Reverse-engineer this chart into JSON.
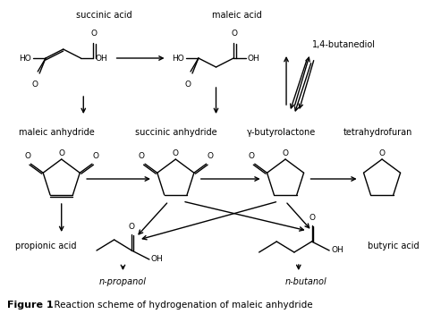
{
  "background_color": "#ffffff",
  "figure_width": 4.74,
  "figure_height": 3.51,
  "dpi": 100,
  "labels": {
    "succinic_acid": "succinic acid",
    "maleic_acid": "maleic acid",
    "butanediol": "1,4-butanediol",
    "maleic_anhydride": "maleic anhydride",
    "succinic_anhydride": "succinic anhydride",
    "gamma_butyrolactone": "γ-butyrolactone",
    "tetrahydrofuran": "tetrahydrofuran",
    "propionic_acid": "propionic acid",
    "butyric_acid": "butyric acid",
    "n_propanol": "n-propanol",
    "n_butanol": "n-butanol"
  },
  "caption_bold": "Figure 1",
  "caption_rest": "  Reaction scheme of hydrogenation of maleic anhydride",
  "text_color": "#000000"
}
